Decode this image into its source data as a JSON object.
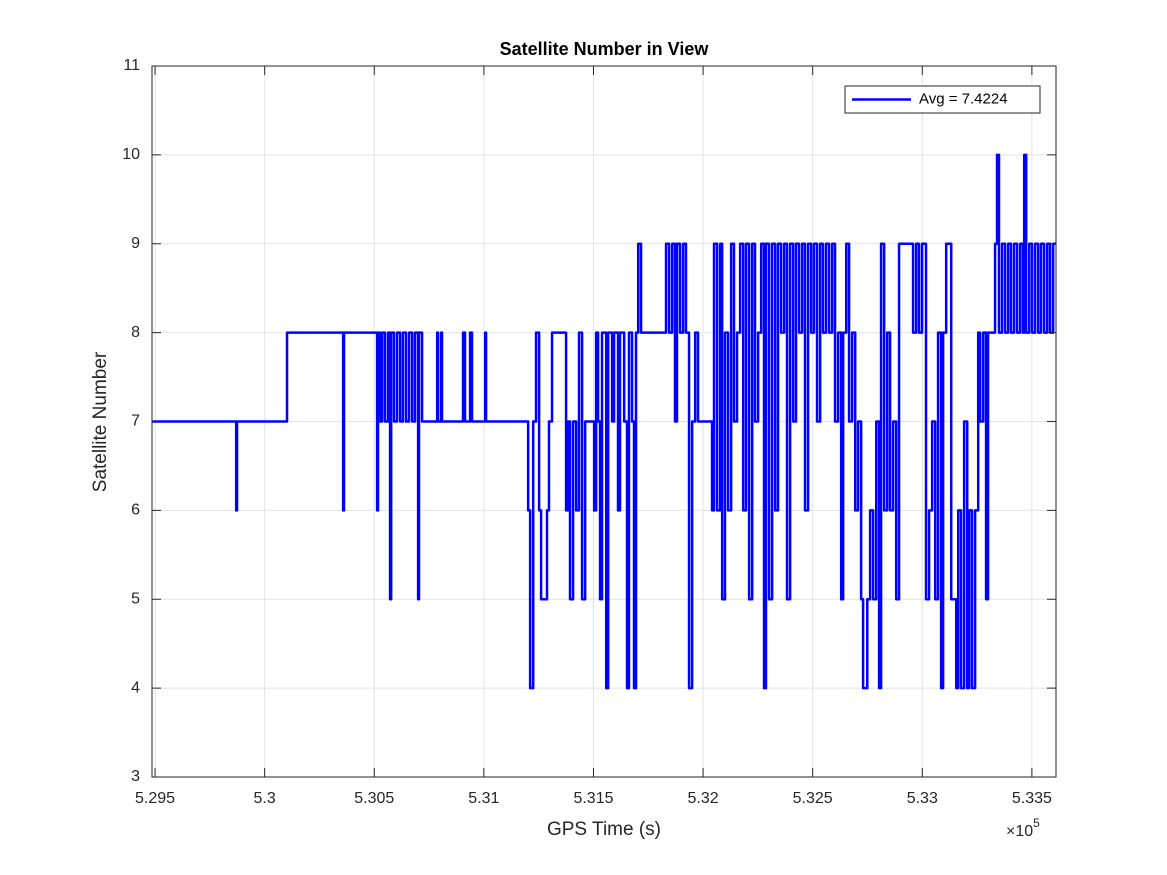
{
  "chart_data": {
    "type": "line",
    "step": "post",
    "title": "Satellite Number in View",
    "x_label": "GPS Time (s)",
    "y_label": "Satellite Number",
    "x_exponent": {
      "base": "×10",
      "power": "5"
    },
    "xlim": [
      529486,
      533610
    ],
    "ylim": [
      3,
      11
    ],
    "xticks": [
      {
        "value": 529500,
        "label": "5.295"
      },
      {
        "value": 530000,
        "label": "5.3"
      },
      {
        "value": 530500,
        "label": "5.305"
      },
      {
        "value": 531000,
        "label": "5.31"
      },
      {
        "value": 531500,
        "label": "5.315"
      },
      {
        "value": 532000,
        "label": "5.32"
      },
      {
        "value": 532500,
        "label": "5.325"
      },
      {
        "value": 533000,
        "label": "5.33"
      },
      {
        "value": 533500,
        "label": "5.335"
      }
    ],
    "yticks": [
      3,
      4,
      5,
      6,
      7,
      8,
      9,
      10,
      11
    ],
    "grid": true,
    "legend": "upper right",
    "x": [
      529486,
      529870,
      529874,
      530102,
      530358,
      530362,
      530513,
      530517,
      530527,
      530536,
      530549,
      530563,
      530572,
      530577,
      530590,
      530604,
      530618,
      530631,
      530645,
      530659,
      530673,
      530686,
      530700,
      530704,
      530718,
      530787,
      530791,
      530805,
      530809,
      530905,
      530914,
      530937,
      530946,
      531006,
      531010,
      531202,
      531211,
      531225,
      531238,
      531252,
      531261,
      531288,
      531297,
      531311,
      531375,
      531384,
      531393,
      531407,
      531421,
      531434,
      531448,
      531462,
      531485,
      531503,
      531512,
      531521,
      531530,
      531539,
      531558,
      531567,
      531585,
      531594,
      531612,
      531621,
      531640,
      531653,
      531662,
      531676,
      531685,
      531694,
      531704,
      531717,
      531781,
      531831,
      531845,
      531859,
      531872,
      531881,
      531895,
      531909,
      531922,
      531936,
      531950,
      531964,
      531977,
      531986,
      532041,
      532050,
      532064,
      532078,
      532087,
      532100,
      532114,
      532128,
      532141,
      532155,
      532169,
      532183,
      532196,
      532210,
      532224,
      532237,
      532251,
      532265,
      532278,
      532287,
      532301,
      532315,
      532329,
      532342,
      532356,
      532370,
      532383,
      532397,
      532411,
      532424,
      532438,
      532452,
      532465,
      532479,
      532493,
      532506,
      532520,
      532534,
      532547,
      532561,
      532575,
      532589,
      532602,
      532616,
      532630,
      532639,
      532653,
      532666,
      532680,
      532694,
      532707,
      532721,
      532730,
      532749,
      532762,
      532776,
      532790,
      532803,
      532812,
      532826,
      532840,
      532853,
      532867,
      532881,
      532894,
      532958,
      532972,
      532985,
      532999,
      533017,
      533031,
      533045,
      533059,
      533072,
      533086,
      533095,
      533109,
      533132,
      533155,
      533164,
      533177,
      533191,
      533205,
      533214,
      533227,
      533241,
      533255,
      533264,
      533278,
      533291,
      533300,
      533318,
      533332,
      533341,
      533350,
      533364,
      533378,
      533392,
      533405,
      533419,
      533433,
      533447,
      533460,
      533465,
      533474,
      533488,
      533501,
      533515,
      533529,
      533542,
      533556,
      533570,
      533583,
      533597,
      533610
    ],
    "series": [
      {
        "name": "Avg = 7.4224",
        "color": "#0000ff",
        "values": [
          7,
          6,
          7,
          8,
          6,
          8,
          6,
          8,
          7,
          8,
          7,
          8,
          5,
          8,
          7,
          8,
          7,
          8,
          7,
          8,
          7,
          8,
          5,
          8,
          7,
          8,
          7,
          8,
          7,
          8,
          7,
          8,
          7,
          8,
          7,
          6,
          4,
          7,
          8,
          6,
          5,
          6,
          7,
          8,
          6,
          7,
          5,
          7,
          6,
          8,
          5,
          7,
          7,
          6,
          8,
          7,
          5,
          8,
          4,
          8,
          7,
          8,
          6,
          8,
          7,
          4,
          8,
          7,
          4,
          8,
          9,
          8,
          8,
          9,
          8,
          9,
          7,
          9,
          8,
          9,
          8,
          4,
          7,
          8,
          7,
          7,
          6,
          9,
          6,
          9,
          5,
          8,
          6,
          9,
          7,
          8,
          9,
          6,
          9,
          5,
          9,
          7,
          8,
          9,
          4,
          9,
          5,
          9,
          6,
          9,
          8,
          9,
          5,
          9,
          7,
          9,
          8,
          9,
          6,
          9,
          8,
          9,
          7,
          9,
          8,
          9,
          8,
          9,
          7,
          8,
          5,
          8,
          9,
          7,
          8,
          6,
          7,
          5,
          4,
          5,
          6,
          5,
          7,
          4,
          9,
          6,
          8,
          6,
          7,
          5,
          9,
          8,
          9,
          8,
          9,
          5,
          6,
          7,
          5,
          8,
          4,
          8,
          9,
          5,
          4,
          6,
          4,
          7,
          4,
          6,
          4,
          6,
          8,
          7,
          8,
          5,
          8,
          8,
          9,
          10,
          8,
          9,
          8,
          9,
          8,
          9,
          8,
          9,
          8,
          10,
          8,
          9,
          8,
          9,
          8,
          9,
          8,
          9,
          8,
          9,
          9
        ]
      }
    ]
  }
}
